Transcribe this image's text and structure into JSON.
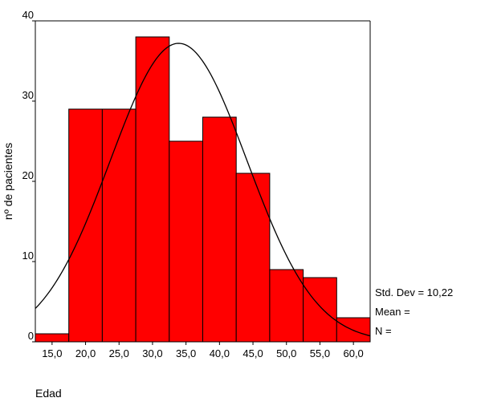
{
  "chart_data": {
    "type": "bar",
    "title": "",
    "xlabel": "Edad",
    "ylabel": "nº de pacientes",
    "x_ticks": [
      "15,0",
      "20,0",
      "25,0",
      "30,0",
      "35,0",
      "40,0",
      "45,0",
      "50,0",
      "55,0",
      "60,0"
    ],
    "y_ticks": [
      "0",
      "10",
      "20",
      "30",
      "40"
    ],
    "bins": [
      {
        "center": 15,
        "value": 1
      },
      {
        "center": 20,
        "value": 29
      },
      {
        "center": 25,
        "value": 29
      },
      {
        "center": 30,
        "value": 38
      },
      {
        "center": 35,
        "value": 25
      },
      {
        "center": 40,
        "value": 28
      },
      {
        "center": 45,
        "value": 21
      },
      {
        "center": 50,
        "value": 9
      },
      {
        "center": 55,
        "value": 8
      },
      {
        "center": 60,
        "value": 3
      }
    ],
    "bin_width": 5,
    "xlim": [
      12.5,
      62.5
    ],
    "ylim": [
      0,
      40
    ],
    "normal_curve": {
      "mean": 33.9,
      "std_dev": 10.22,
      "peak": 37.2
    },
    "bar_color": "#ff0000",
    "stats": {
      "std_dev_label": "Std. Dev = 10,22",
      "mean_label": "Mean =",
      "n_label": "N ="
    }
  }
}
